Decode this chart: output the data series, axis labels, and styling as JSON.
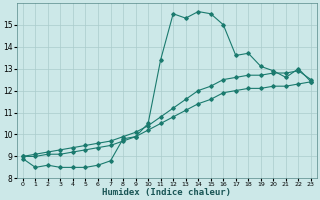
{
  "xlabel": "Humidex (Indice chaleur)",
  "xlim": [
    -0.5,
    23.5
  ],
  "ylim": [
    8,
    16
  ],
  "yticks": [
    8,
    9,
    10,
    11,
    12,
    13,
    14,
    15
  ],
  "xticks": [
    0,
    1,
    2,
    3,
    4,
    5,
    6,
    7,
    8,
    9,
    10,
    11,
    12,
    13,
    14,
    15,
    16,
    17,
    18,
    19,
    20,
    21,
    22,
    23
  ],
  "bg_color": "#cce8e8",
  "line_color": "#1a7a6e",
  "grid_color": "#aacccc",
  "line1_x": [
    0,
    1,
    2,
    3,
    4,
    5,
    6,
    7,
    8,
    9,
    10,
    11,
    12,
    13,
    14,
    15,
    16,
    17,
    18,
    19,
    20,
    21,
    22,
    23
  ],
  "line1_y": [
    8.9,
    8.5,
    8.6,
    8.5,
    8.5,
    8.5,
    8.6,
    8.8,
    9.8,
    9.9,
    10.5,
    13.4,
    15.5,
    15.3,
    15.6,
    15.5,
    15.0,
    13.6,
    13.7,
    13.1,
    12.9,
    12.6,
    13.0,
    12.4
  ],
  "line2_x": [
    0,
    1,
    2,
    3,
    4,
    5,
    6,
    7,
    8,
    9,
    10,
    11,
    12,
    13,
    14,
    15,
    16,
    17,
    18,
    19,
    20,
    21,
    22,
    23
  ],
  "line2_y": [
    9.0,
    9.1,
    9.2,
    9.3,
    9.4,
    9.5,
    9.6,
    9.7,
    9.9,
    10.1,
    10.4,
    10.8,
    11.2,
    11.6,
    12.0,
    12.2,
    12.5,
    12.6,
    12.7,
    12.7,
    12.8,
    12.8,
    12.9,
    12.5
  ],
  "line3_x": [
    0,
    1,
    2,
    3,
    4,
    5,
    6,
    7,
    8,
    9,
    10,
    11,
    12,
    13,
    14,
    15,
    16,
    17,
    18,
    19,
    20,
    21,
    22,
    23
  ],
  "line3_y": [
    9.0,
    9.0,
    9.1,
    9.1,
    9.2,
    9.3,
    9.4,
    9.5,
    9.7,
    9.9,
    10.2,
    10.5,
    10.8,
    11.1,
    11.4,
    11.6,
    11.9,
    12.0,
    12.1,
    12.1,
    12.2,
    12.2,
    12.3,
    12.4
  ]
}
